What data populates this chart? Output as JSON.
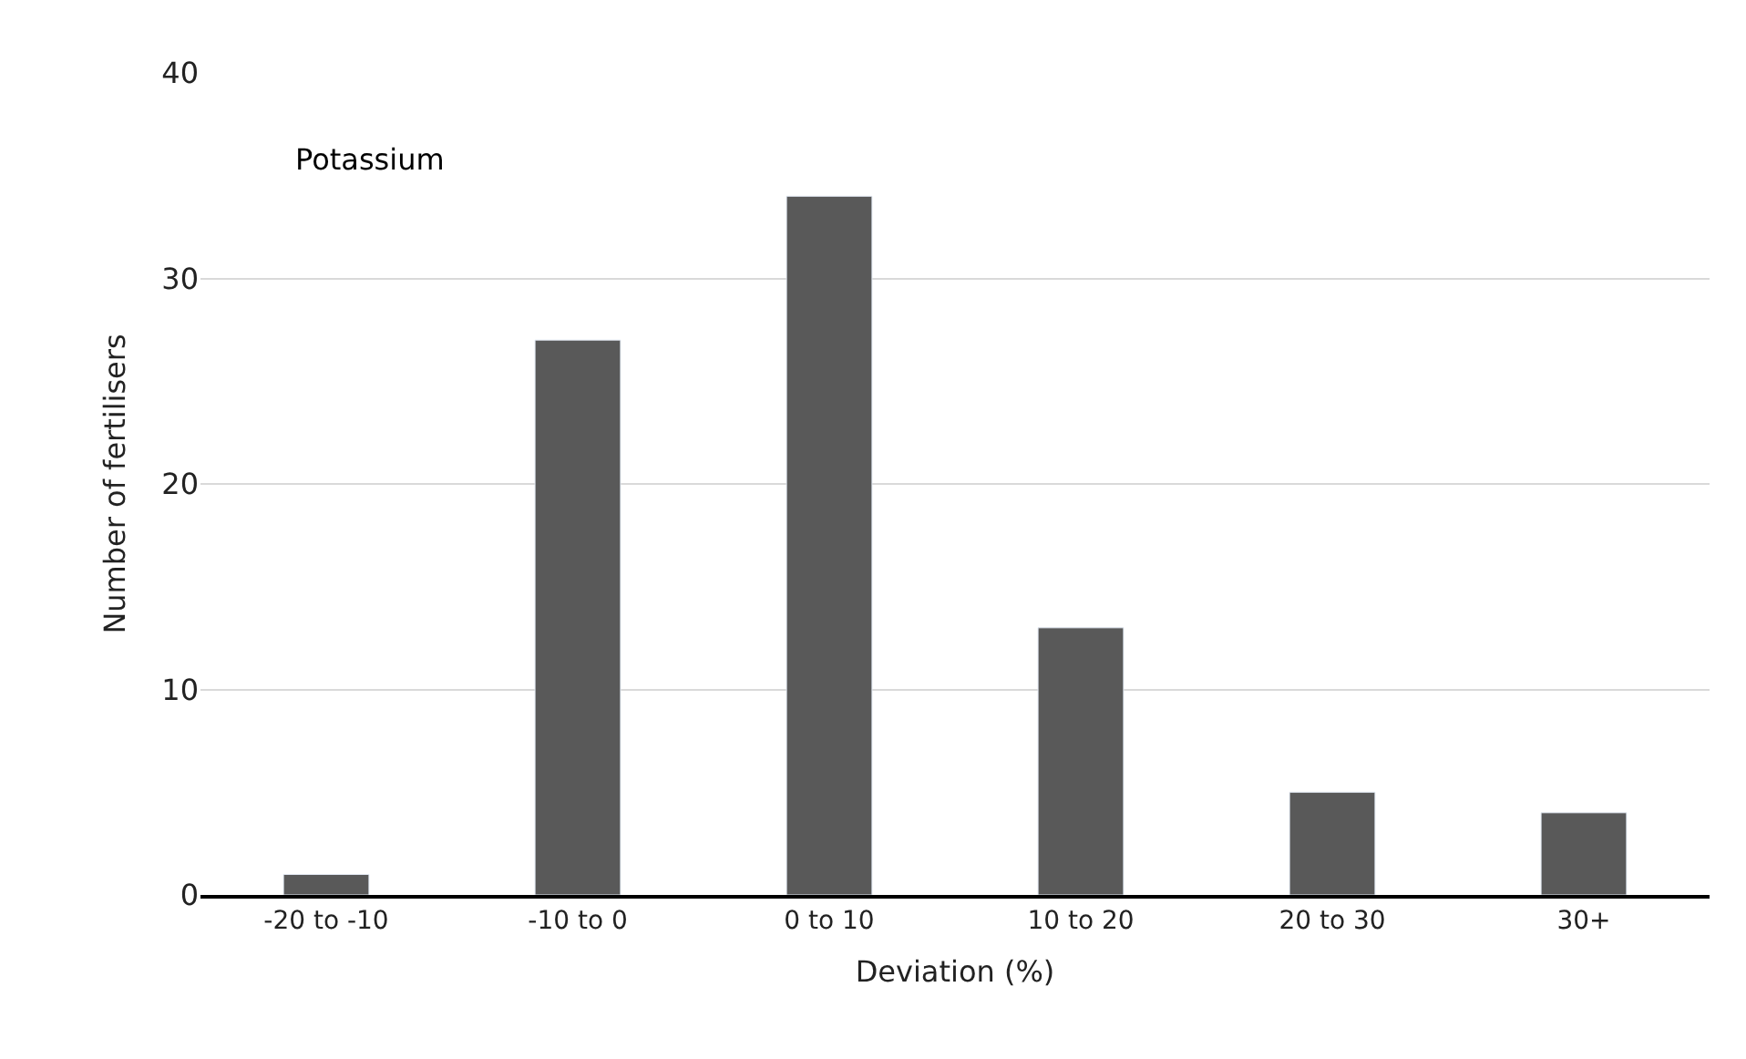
{
  "chart_data": {
    "type": "bar",
    "xlabel": "Deviation (%)",
    "ylabel": "Number of fertilisers",
    "categories": [
      "-20 to -10",
      "-10 to 0",
      "0 to 10",
      "10 to 20",
      "20 to 30",
      "30+"
    ],
    "values": [
      1,
      27,
      34,
      13,
      5,
      4
    ],
    "color": "#595959",
    "ylim": [
      0,
      40
    ],
    "yticks": [
      0,
      10,
      20,
      30,
      40
    ],
    "grid": "y",
    "annotations": [
      "Potassium"
    ]
  }
}
